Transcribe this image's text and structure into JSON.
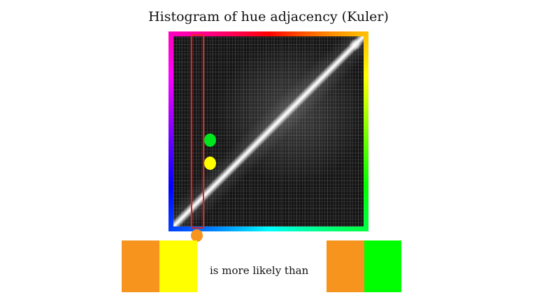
{
  "slide": {
    "title": "Histogram of hue adjacency (Kuler)",
    "caption": "is more likely than"
  },
  "markers": {
    "green_dot": {
      "color": "#00e61e"
    },
    "yellow_dot": {
      "color": "#ffff00"
    },
    "orange_dot": {
      "color": "#f7941d"
    }
  },
  "comparison": {
    "left_pair": [
      "#f7941d",
      "#ffff00"
    ],
    "right_pair": [
      "#f7941d",
      "#00ff00"
    ]
  },
  "colors": {
    "highlight_outline": "#e3221c",
    "heatmap_background": "#141414"
  }
}
